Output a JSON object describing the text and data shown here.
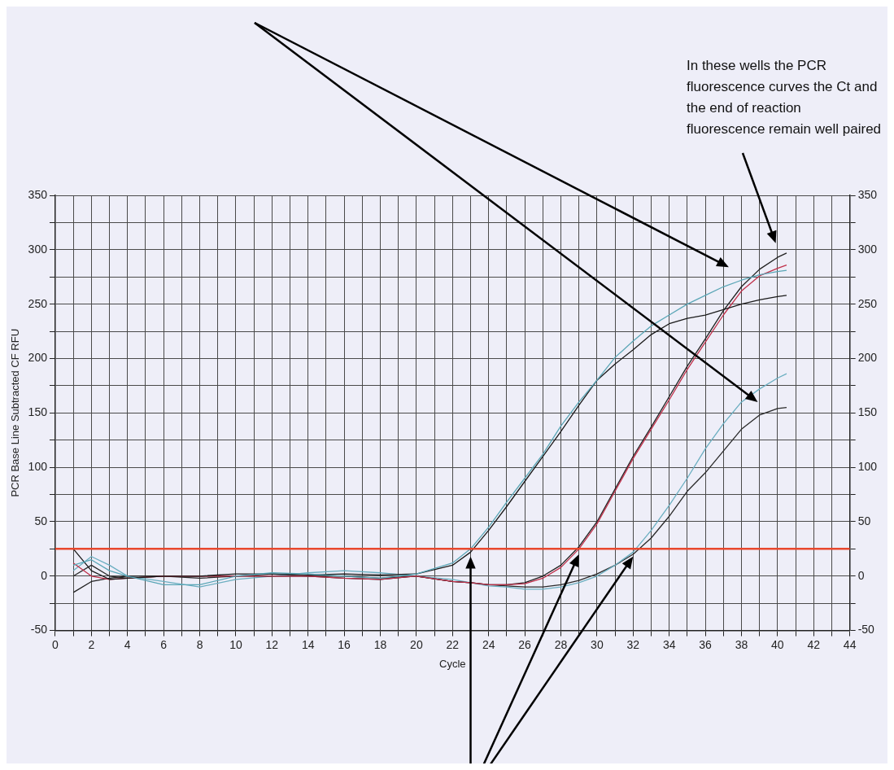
{
  "chart_data": {
    "type": "line",
    "xlabel": "Cycle",
    "ylabel": "PCR Base Line Subtracted CF RFU",
    "annotations": [
      "In these wells the PCR fluorescence curves the Ct and the end of reaction fluorescence remain well paired"
    ],
    "x": [
      1,
      2,
      3,
      4,
      6,
      8,
      10,
      12,
      14,
      16,
      18,
      20,
      22,
      23,
      24,
      25,
      26,
      27,
      28,
      29,
      30,
      31,
      32,
      33,
      34,
      35,
      36,
      37,
      38,
      39,
      40,
      40.5
    ],
    "series": [
      {
        "color": "#5aa6b6",
        "values": [
          10,
          15,
          5,
          0,
          -8,
          -8,
          0,
          3,
          2,
          0,
          -2,
          2,
          12,
          25,
          45,
          68,
          90,
          112,
          138,
          160,
          180,
          201,
          216,
          230,
          240,
          250,
          258,
          266,
          272,
          277,
          280,
          281
        ]
      },
      {
        "color": "#1a1a1a",
        "values": [
          25,
          5,
          -3,
          -2,
          0,
          0,
          2,
          2,
          1,
          2,
          1,
          2,
          10,
          22,
          42,
          64,
          87,
          110,
          133,
          157,
          180,
          195,
          208,
          222,
          232,
          237,
          240,
          245,
          250,
          254,
          257,
          258
        ]
      },
      {
        "color": "#c0304a",
        "values": [
          12,
          0,
          -3,
          -2,
          0,
          0,
          0,
          0,
          0,
          -2,
          -3,
          0,
          -5,
          -6,
          -8,
          -8,
          -7,
          -2,
          8,
          25,
          48,
          78,
          108,
          135,
          162,
          190,
          215,
          240,
          262,
          276,
          283,
          286
        ]
      },
      {
        "color": "#202020",
        "values": [
          -15,
          -5,
          -2,
          0,
          0,
          0,
          0,
          0,
          0,
          -2,
          -3,
          0,
          -5,
          -6,
          -8,
          -8,
          -6,
          0,
          10,
          27,
          50,
          80,
          110,
          137,
          165,
          193,
          218,
          244,
          266,
          282,
          293,
          297
        ]
      },
      {
        "color": "#6aaec0",
        "values": [
          5,
          18,
          10,
          0,
          -5,
          -10,
          -3,
          0,
          3,
          5,
          3,
          0,
          -3,
          -6,
          -9,
          -10,
          -12,
          -12,
          -10,
          -6,
          0,
          10,
          22,
          42,
          65,
          90,
          117,
          140,
          160,
          172,
          182,
          186
        ]
      },
      {
        "color": "#2a2a2a",
        "values": [
          0,
          10,
          0,
          -2,
          0,
          -2,
          0,
          2,
          0,
          0,
          -2,
          0,
          -5,
          -6,
          -8,
          -9,
          -10,
          -10,
          -8,
          -4,
          2,
          10,
          20,
          35,
          55,
          78,
          95,
          115,
          135,
          148,
          154,
          155
        ]
      }
    ],
    "xlim": [
      0,
      44
    ],
    "xticks": [
      0,
      {
        "value": 1,
        "label": null
      },
      2,
      {
        "value": 3,
        "label": null
      },
      4,
      {
        "value": 5,
        "label": null
      },
      6,
      {
        "value": 7,
        "label": null
      },
      8,
      {
        "value": 9,
        "label": null
      },
      10,
      {
        "value": 11,
        "label": null
      },
      12,
      {
        "value": 13,
        "label": null
      },
      14,
      {
        "value": 15,
        "label": null
      },
      16,
      {
        "value": 17,
        "label": null
      },
      18,
      {
        "value": 19,
        "label": null
      },
      20,
      {
        "value": 21,
        "label": null
      },
      22,
      {
        "value": 23,
        "label": null
      },
      24,
      {
        "value": 25,
        "label": null
      },
      26,
      {
        "value": 27,
        "label": null
      },
      28,
      {
        "value": 29,
        "label": null
      },
      30,
      {
        "value": 31,
        "label": null
      },
      32,
      {
        "value": 33,
        "label": null
      },
      34,
      {
        "value": 35,
        "label": null
      },
      36,
      {
        "value": 37,
        "label": null
      },
      38,
      {
        "value": 39,
        "label": null
      },
      40,
      {
        "value": 41,
        "label": null
      },
      42,
      {
        "value": 43,
        "label": null
      },
      44
    ],
    "ylim": [
      -50,
      350
    ],
    "yticks": [
      -50,
      {
        "value": -25,
        "label": null
      },
      0,
      {
        "value": 25,
        "label": null
      },
      50,
      {
        "value": 75,
        "label": null
      },
      100,
      {
        "value": 125,
        "label": null
      },
      150,
      {
        "value": 175,
        "label": null
      },
      200,
      {
        "value": 225,
        "label": null
      },
      250,
      {
        "value": 275,
        "label": null
      },
      300,
      {
        "value": 325,
        "label": null
      },
      350
    ],
    "y2lim": [
      -50,
      350
    ],
    "y2ticks": [
      -50,
      {
        "value": -25,
        "label": null
      },
      0,
      {
        "value": 25,
        "label": null
      },
      50,
      {
        "value": 75,
        "label": null
      },
      100,
      {
        "value": 125,
        "label": null
      },
      150,
      {
        "value": 175,
        "label": null
      },
      200,
      {
        "value": 225,
        "label": null
      },
      250,
      {
        "value": 275,
        "label": null
      },
      300,
      {
        "value": 325,
        "label": null
      },
      350
    ],
    "ref_lines": [
      {
        "axis": "y",
        "value": 25,
        "color": "#e8472d"
      }
    ],
    "grid": true,
    "legend": false,
    "marker": "none",
    "line_style": "solid"
  }
}
